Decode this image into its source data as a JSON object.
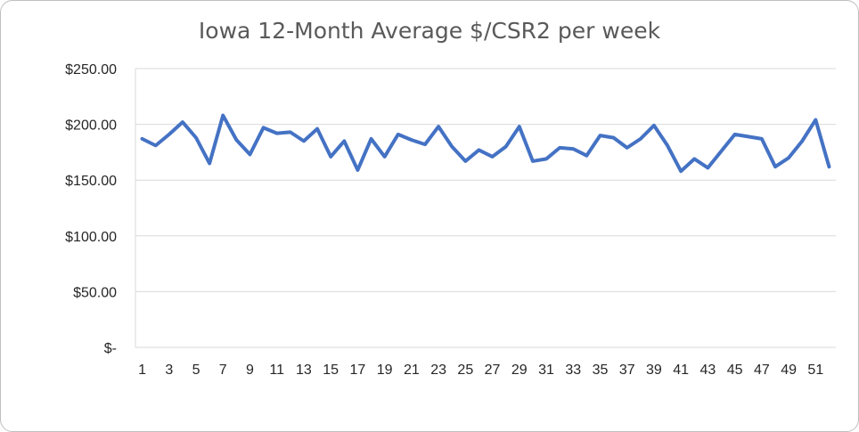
{
  "chart_data": {
    "type": "line",
    "title": "Iowa 12-Month Average $/CSR2 per week",
    "xlabel": "",
    "ylabel": "",
    "ylim": [
      0,
      250
    ],
    "y_ticks": [
      0,
      50,
      100,
      150,
      200,
      250
    ],
    "y_tick_labels": [
      "$-",
      "$50.00",
      "$100.00",
      "$150.00",
      "$200.00",
      "$250.00"
    ],
    "x_tick_labels": [
      "1",
      "3",
      "5",
      "7",
      "9",
      "11",
      "13",
      "15",
      "17",
      "19",
      "21",
      "23",
      "25",
      "27",
      "29",
      "31",
      "33",
      "35",
      "37",
      "39",
      "41",
      "43",
      "45",
      "47",
      "49",
      "51"
    ],
    "grid": "horizontal",
    "legend": "none",
    "line_color": "#4472c4",
    "x": [
      1,
      2,
      3,
      4,
      5,
      6,
      7,
      8,
      9,
      10,
      11,
      12,
      13,
      14,
      15,
      16,
      17,
      18,
      19,
      20,
      21,
      22,
      23,
      24,
      25,
      26,
      27,
      28,
      29,
      30,
      31,
      32,
      33,
      34,
      35,
      36,
      37,
      38,
      39,
      40,
      41,
      42,
      43,
      44,
      45,
      46,
      47,
      48,
      49,
      50,
      51,
      52
    ],
    "series": [
      {
        "values": [
          187,
          181,
          191,
          202,
          188,
          165,
          208,
          186,
          173,
          197,
          192,
          193,
          185,
          196,
          171,
          185,
          159,
          187,
          171,
          191,
          186,
          182,
          198,
          180,
          167,
          177,
          171,
          180,
          198,
          167,
          169,
          179,
          178,
          172,
          190,
          188,
          179,
          187,
          199,
          181,
          158,
          169,
          161,
          176,
          191,
          189,
          187,
          162,
          170,
          185,
          204,
          162
        ]
      }
    ]
  }
}
